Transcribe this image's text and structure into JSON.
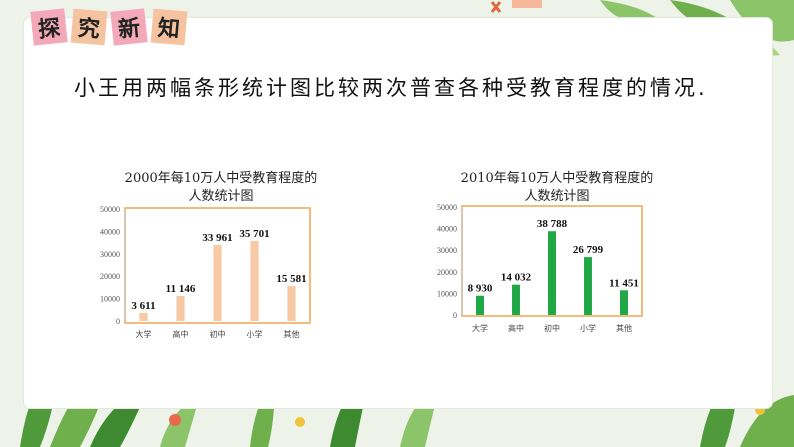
{
  "section_tag": [
    "探",
    "究",
    "新",
    "知"
  ],
  "heading": "小王用两幅条形统计图比较两次普查各种受教育程度的情况.",
  "colors": {
    "bar_2000": "#f7c9a4",
    "bar_2010": "#1fa843",
    "frame": "#f0a650",
    "tag_bg": [
      "#f4a9b8",
      "#f6c3a0",
      "#f4a9b8",
      "#f6c3a0"
    ],
    "leaf_green": "#5aa83c"
  },
  "chart_data": [
    {
      "type": "bar",
      "title": "2000年每10万人中受教育程度的",
      "subtitle": "人数统计图",
      "categories": [
        "大学",
        "高中",
        "初中",
        "小学",
        "其他"
      ],
      "values": [
        3611,
        11146,
        33961,
        35701,
        15581
      ],
      "value_labels": [
        "3 611",
        "11 146",
        "33 961",
        "35 701",
        "15 581"
      ],
      "ylim": [
        0,
        50000
      ],
      "yticks": [
        "0",
        "10000",
        "20000",
        "30000",
        "40000",
        "50000"
      ],
      "grid": false
    },
    {
      "type": "bar",
      "title": "2010年每10万人中受教育程度的",
      "subtitle": "人数统计图",
      "categories": [
        "大学",
        "高中",
        "初中",
        "小学",
        "其他"
      ],
      "values": [
        8930,
        14032,
        38788,
        26799,
        11451
      ],
      "value_labels": [
        "8 930",
        "14 032",
        "38 788",
        "26 799",
        "11 451"
      ],
      "ylim": [
        0,
        50000
      ],
      "yticks": [
        "0",
        "10000",
        "20000",
        "30000",
        "40000",
        "50000"
      ],
      "grid": false
    }
  ]
}
